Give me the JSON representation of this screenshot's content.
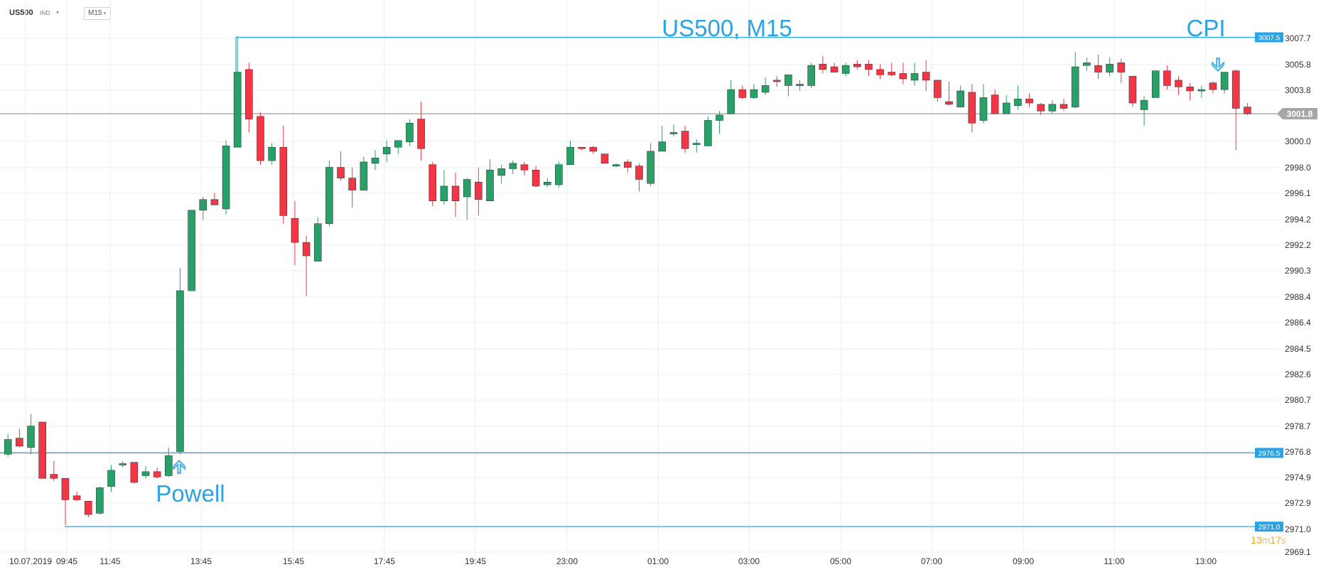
{
  "toolbar": {
    "symbol": "US500",
    "instrument_type": "IND",
    "timeframe": "M15",
    "dropdown_icon": "chevron-down-icon"
  },
  "colors": {
    "up": "#26a269",
    "down": "#f23645",
    "level_line": "#29a3e8",
    "annotation_text": "#29a3e8",
    "current_price_line": "#a6a6a6",
    "grid": "#eeeeee",
    "axis_text": "#333333",
    "countdown": "#f5a623"
  },
  "chart_data": {
    "type": "candlestick",
    "title": "US500, M15",
    "x_tick_labels": [
      "10.07.2019",
      "09:45",
      "11:45",
      "13:45",
      "15:45",
      "17:45",
      "19:45",
      "23:00",
      "01:00",
      "03:00",
      "05:00",
      "07:00",
      "09:00",
      "11:00",
      "13:00"
    ],
    "y_tick_labels": [
      "3007.7",
      "3005.8",
      "3003.8",
      "3000.0",
      "2998.0",
      "2996.1",
      "2994.2",
      "2992.2",
      "2990.3",
      "2988.4",
      "2986.4",
      "2984.5",
      "2982.6",
      "2980.7",
      "2978.7",
      "2976.8",
      "2974.9",
      "2972.9",
      "2971.0",
      "2969.1"
    ],
    "ylim": [
      2969.1,
      3009.9
    ],
    "grid": true,
    "candles": [
      [
        2976.4,
        2977.9,
        2976.2,
        2977.5
      ],
      [
        2977.6,
        2978.3,
        2976.9,
        2977.0
      ],
      [
        2976.9,
        2979.4,
        2976.4,
        2978.5
      ],
      [
        2978.8,
        2978.8,
        2974.6,
        2974.6
      ],
      [
        2974.9,
        2975.9,
        2974.4,
        2974.6
      ],
      [
        2974.6,
        2974.6,
        2971.1,
        2973.0
      ],
      [
        2973.3,
        2973.6,
        2972.9,
        2973.0
      ],
      [
        2972.9,
        2972.9,
        2971.7,
        2971.9
      ],
      [
        2972.0,
        2974.0,
        2971.9,
        2973.9
      ],
      [
        2974.0,
        2975.6,
        2973.6,
        2975.2
      ],
      [
        2975.6,
        2975.9,
        2975.4,
        2975.7
      ],
      [
        2975.8,
        2975.8,
        2974.2,
        2974.3
      ],
      [
        2974.8,
        2975.5,
        2974.6,
        2975.1
      ],
      [
        2975.1,
        2975.4,
        2974.6,
        2974.7
      ],
      [
        2974.8,
        2976.9,
        2974.7,
        2976.3
      ],
      [
        2976.6,
        2990.3,
        2976.4,
        2988.6
      ],
      [
        2988.6,
        2994.6,
        2988.6,
        2994.6
      ],
      [
        2994.6,
        2995.6,
        2993.9,
        2995.4
      ],
      [
        2995.4,
        2995.9,
        2995.0,
        2995.0
      ],
      [
        2994.7,
        2999.8,
        2994.3,
        2999.4
      ],
      [
        2999.3,
        3007.6,
        2999.3,
        3004.9
      ],
      [
        3005.1,
        3005.6,
        3000.4,
        3001.4
      ],
      [
        3001.6,
        3001.9,
        2998.0,
        2998.3
      ],
      [
        2998.3,
        2999.6,
        2998.0,
        2999.3
      ],
      [
        2999.3,
        3000.9,
        2993.6,
        2994.2
      ],
      [
        2994.0,
        2995.3,
        2990.5,
        2992.2
      ],
      [
        2992.2,
        2992.7,
        2988.2,
        2991.2
      ],
      [
        2990.8,
        2994.1,
        2990.8,
        2993.6
      ],
      [
        2993.6,
        2998.3,
        2993.4,
        2997.8
      ],
      [
        2997.8,
        2999.0,
        2996.8,
        2997.0
      ],
      [
        2997.0,
        2997.8,
        2994.8,
        2996.1
      ],
      [
        2996.1,
        2998.6,
        2996.1,
        2998.2
      ],
      [
        2998.1,
        2999.1,
        2997.6,
        2998.5
      ],
      [
        2998.8,
        2999.8,
        2998.2,
        2999.3
      ],
      [
        2999.3,
        2999.8,
        2998.8,
        2999.8
      ],
      [
        2999.7,
        3001.4,
        2999.4,
        3001.1
      ],
      [
        3001.4,
        3002.7,
        2998.3,
        2999.2
      ],
      [
        2998.0,
        2998.2,
        2994.9,
        2995.3
      ],
      [
        2995.3,
        2997.6,
        2995.0,
        2996.4
      ],
      [
        2996.4,
        2997.4,
        2994.1,
        2995.3
      ],
      [
        2995.6,
        2997.0,
        2993.9,
        2996.9
      ],
      [
        2996.7,
        2997.8,
        2994.2,
        2995.4
      ],
      [
        2995.3,
        2998.4,
        2995.3,
        2997.6
      ],
      [
        2997.2,
        2998.0,
        2996.6,
        2997.7
      ],
      [
        2997.7,
        2998.3,
        2997.3,
        2998.1
      ],
      [
        2998.0,
        2998.2,
        2997.2,
        2997.6
      ],
      [
        2997.6,
        2997.9,
        2996.3,
        2996.4
      ],
      [
        2996.5,
        2997.0,
        2996.3,
        2996.7
      ],
      [
        2996.5,
        2998.2,
        2996.3,
        2998.0
      ],
      [
        2998.0,
        2999.8,
        2998.0,
        2999.3
      ],
      [
        2999.3,
        2999.3,
        2999.1,
        2999.2
      ],
      [
        2999.3,
        2999.4,
        2998.8,
        2999.0
      ],
      [
        2998.8,
        2998.8,
        2998.1,
        2998.1
      ],
      [
        2998.0,
        2998.1,
        2997.8,
        2998.0
      ],
      [
        2998.2,
        2998.4,
        2997.4,
        2997.8
      ],
      [
        2997.9,
        2998.1,
        2996.0,
        2996.9
      ],
      [
        2996.6,
        2999.6,
        2996.4,
        2999.0
      ],
      [
        2999.0,
        3000.9,
        2999.0,
        2999.7
      ],
      [
        3000.4,
        3001.0,
        3000.1,
        3000.4
      ],
      [
        3000.5,
        3000.9,
        2998.9,
        2999.2
      ],
      [
        2999.6,
        2999.9,
        2998.9,
        2999.6
      ],
      [
        2999.4,
        3001.6,
        2999.4,
        3001.3
      ],
      [
        3001.3,
        3002.0,
        3000.3,
        3001.7
      ],
      [
        3001.8,
        3004.3,
        3001.8,
        3003.6
      ],
      [
        3003.6,
        3003.9,
        3002.9,
        3003.0
      ],
      [
        3003.0,
        3004.0,
        3002.9,
        3003.6
      ],
      [
        3003.4,
        3004.5,
        3003.2,
        3003.9
      ],
      [
        3004.3,
        3004.6,
        3003.8,
        3004.2
      ],
      [
        3003.9,
        3004.6,
        3003.1,
        3004.7
      ],
      [
        3004.0,
        3004.3,
        3003.5,
        3004.0
      ],
      [
        3003.9,
        3005.6,
        3003.7,
        3005.4
      ],
      [
        3005.5,
        3006.1,
        3004.8,
        3005.1
      ],
      [
        3005.3,
        3005.6,
        3004.9,
        3004.9
      ],
      [
        3004.8,
        3005.6,
        3004.6,
        3005.4
      ],
      [
        3005.5,
        3005.8,
        3005.1,
        3005.3
      ],
      [
        3005.5,
        3005.8,
        3004.6,
        3005.1
      ],
      [
        3005.1,
        3005.5,
        3004.4,
        3004.7
      ],
      [
        3004.9,
        3005.6,
        3004.6,
        3004.7
      ],
      [
        3004.8,
        3005.6,
        3004.0,
        3004.4
      ],
      [
        3004.3,
        3005.6,
        3003.9,
        3004.8
      ],
      [
        3004.9,
        3005.8,
        3003.5,
        3004.3
      ],
      [
        3004.3,
        3004.3,
        3002.7,
        3003.0
      ],
      [
        3002.7,
        3004.2,
        3002.4,
        3002.5
      ],
      [
        3002.3,
        3003.9,
        3002.3,
        3003.5
      ],
      [
        3003.4,
        3004.0,
        3000.4,
        3001.1
      ],
      [
        3001.3,
        3004.0,
        3001.1,
        3003.0
      ],
      [
        3003.2,
        3003.6,
        3001.8,
        3001.8
      ],
      [
        3001.8,
        3003.2,
        3001.8,
        3002.6
      ],
      [
        3002.4,
        3003.9,
        3002.1,
        3002.9
      ],
      [
        3002.9,
        3003.3,
        3002.3,
        3002.6
      ],
      [
        3002.5,
        3002.6,
        3001.7,
        3002.0
      ],
      [
        3002.0,
        3002.8,
        3001.8,
        3002.5
      ],
      [
        3002.5,
        3002.9,
        3002.0,
        3002.2
      ],
      [
        3002.3,
        3006.4,
        3002.2,
        3005.3
      ],
      [
        3005.4,
        3006.0,
        3005.0,
        3005.6
      ],
      [
        3005.4,
        3006.2,
        3004.4,
        3004.9
      ],
      [
        3004.9,
        3006.0,
        3004.6,
        3005.5
      ],
      [
        3005.6,
        3005.9,
        3004.1,
        3004.9
      ],
      [
        3004.6,
        3004.6,
        3002.3,
        3002.6
      ],
      [
        3002.1,
        3003.1,
        3000.9,
        3002.8
      ],
      [
        3003.0,
        3005.0,
        3003.0,
        3005.0
      ],
      [
        3005.0,
        3005.4,
        3003.6,
        3003.9
      ],
      [
        3004.3,
        3004.6,
        3003.2,
        3003.8
      ],
      [
        3003.8,
        3004.1,
        3002.8,
        3003.5
      ],
      [
        3003.5,
        3003.9,
        3003.0,
        3003.6
      ],
      [
        3004.1,
        3004.2,
        3003.3,
        3003.6
      ],
      [
        3003.6,
        3004.9,
        3003.3,
        3004.9
      ],
      [
        3005.0,
        3005.1,
        2999.1,
        3002.2
      ],
      [
        3002.3,
        3002.6,
        3001.7,
        3001.8
      ]
    ],
    "levels": [
      {
        "label": "3007.5",
        "price": 3007.5
      },
      {
        "label": "2976.5",
        "price": 2976.5
      },
      {
        "label": "2971.0",
        "price": 2971.0
      }
    ],
    "current_price": "3001.8",
    "annotations": [
      {
        "text": "Powell",
        "arrow": "up"
      },
      {
        "text": "CPI",
        "arrow": "down"
      }
    ],
    "countdown": {
      "minutes": "13",
      "m": "m",
      "seconds": "17",
      "s": "s"
    }
  }
}
